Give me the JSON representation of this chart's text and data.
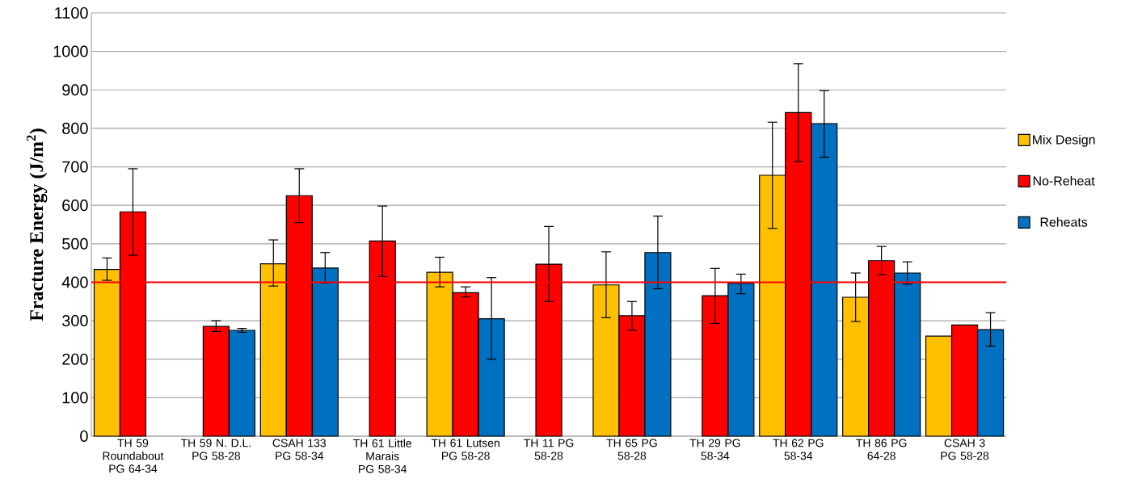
{
  "chart_data": {
    "type": "bar",
    "ylabel": "Fracture Energy (J/m$^{2}$)",
    "categories": [
      "TH 59 Roundabout PG 64-34",
      "TH 59 N. D.L. PG 58-28",
      "CSAH 133 PG 58-34",
      "TH 61 Little Marais PG 58-34",
      "TH 61 Lutsen PG 58-28",
      "TH 11 PG 58-28",
      "TH 65 PG 58-28",
      "TH 29 PG 58-34",
      "TH 62 PG 58-34",
      "TH 86 PG 64-28",
      "CSAH 3 PG 58-28"
    ],
    "series": [
      {
        "name": "Mix Design",
        "color": "#ffc000",
        "values": [
          433,
          null,
          448,
          null,
          426,
          null,
          393,
          null,
          678,
          361,
          260
        ],
        "errors": [
          [
            405,
            463
          ],
          null,
          [
            390,
            510
          ],
          null,
          [
            388,
            465
          ],
          null,
          [
            308,
            479
          ],
          null,
          [
            540,
            816
          ],
          [
            298,
            424
          ],
          null
        ]
      },
      {
        "name": "No-Reheat",
        "color": "#ff0000",
        "values": [
          583,
          285,
          625,
          507,
          373,
          447,
          313,
          365,
          841,
          456,
          289
        ],
        "errors": [
          [
            470,
            695
          ],
          [
            272,
            300
          ],
          [
            555,
            695
          ],
          [
            415,
            598
          ],
          [
            362,
            388
          ],
          [
            350,
            545
          ],
          [
            275,
            350
          ],
          [
            293,
            436
          ],
          [
            714,
            968
          ],
          [
            420,
            493
          ],
          null
        ]
      },
      {
        "name": "Reheats",
        "color": "#0070c0",
        "values": [
          null,
          275,
          437,
          null,
          305,
          null,
          477,
          397,
          812,
          424,
          277
        ],
        "errors": [
          null,
          [
            270,
            280
          ],
          [
            398,
            477
          ],
          null,
          [
            200,
            412
          ],
          null,
          [
            383,
            572
          ],
          [
            370,
            421
          ],
          [
            725,
            898
          ],
          [
            395,
            453
          ],
          [
            234,
            321
          ]
        ]
      }
    ],
    "ylim": [
      0,
      1100
    ],
    "yticks": [
      0,
      100,
      200,
      300,
      400,
      500,
      600,
      700,
      800,
      900,
      1000,
      1100
    ],
    "grid": "y",
    "legend": "right",
    "ref_lines": [
      {
        "axis": "y",
        "value": 400,
        "color": "#ff0000"
      }
    ]
  }
}
